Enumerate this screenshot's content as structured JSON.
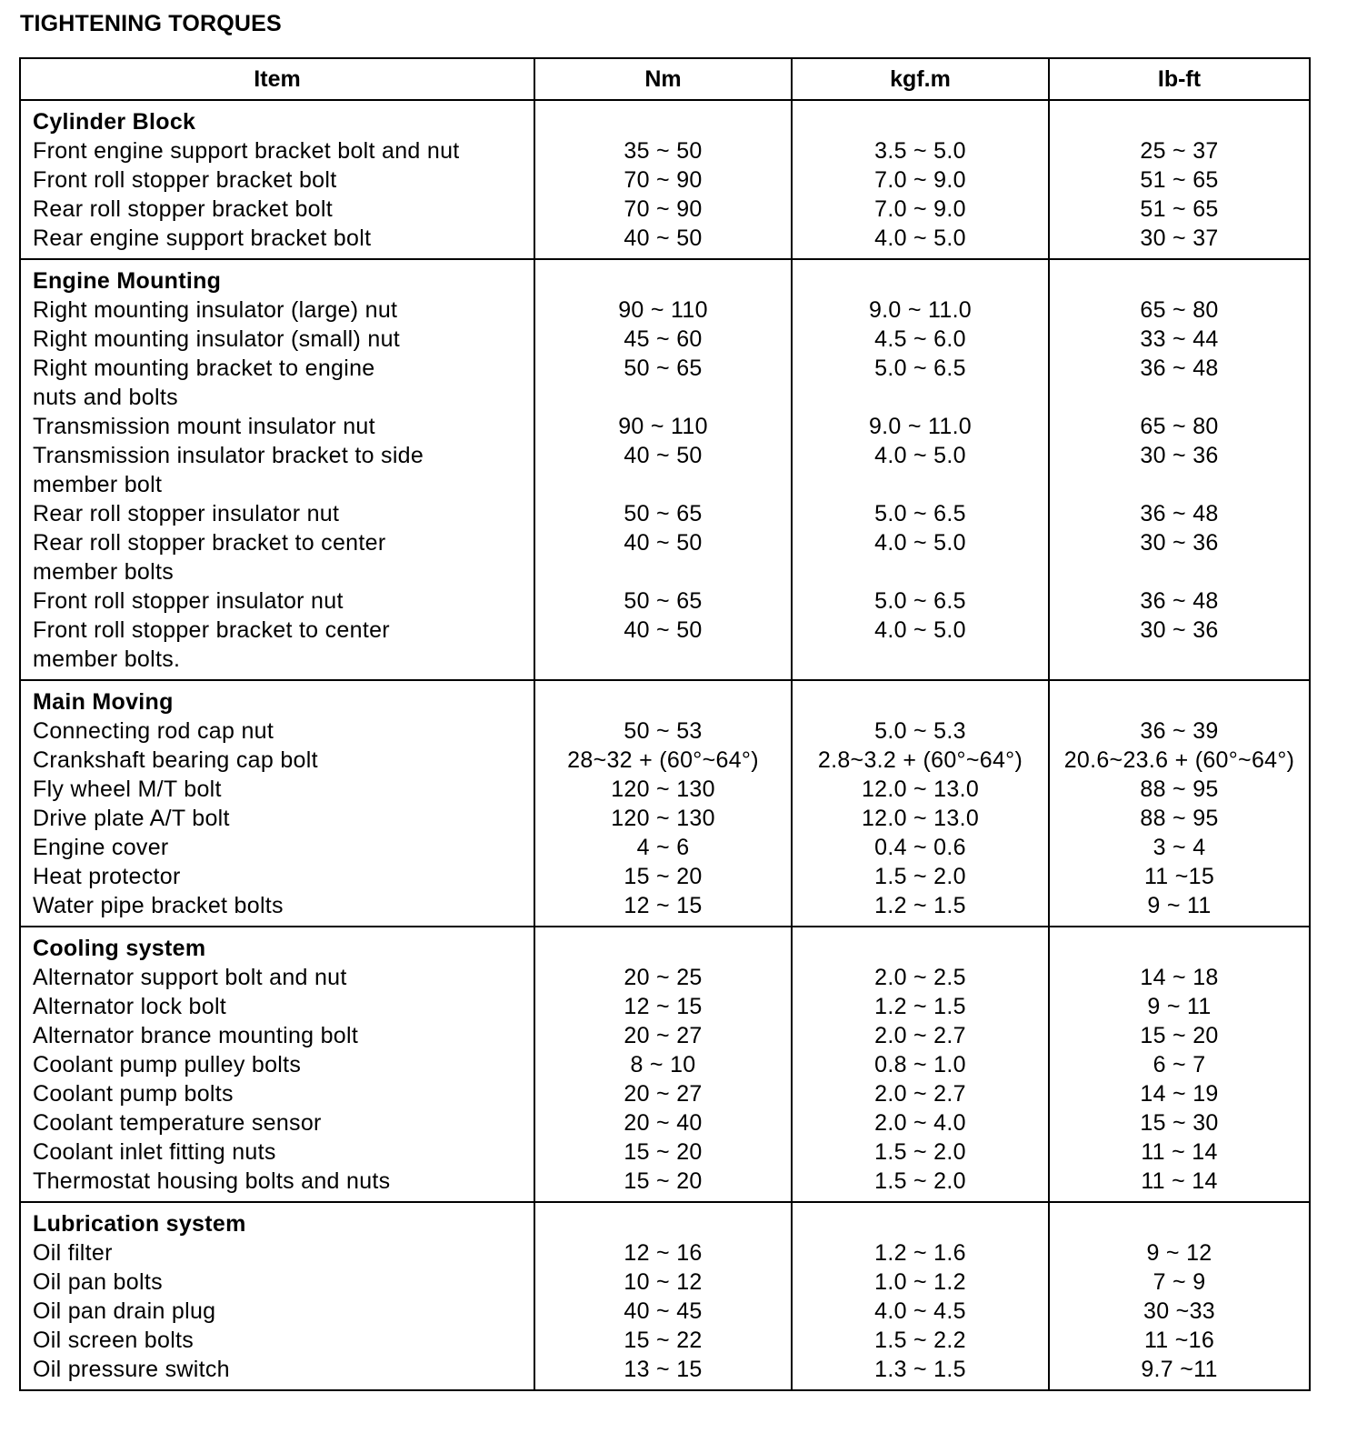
{
  "title": "TIGHTENING TORQUES",
  "columns": [
    "Item",
    "Nm",
    "kgf.m",
    "Ib-ft"
  ],
  "sections": [
    {
      "name": "Cylinder Block",
      "items": [
        {
          "item": [
            "Front engine support bracket bolt and nut"
          ],
          "nm": "35 ~ 50",
          "kgf": "3.5 ~ 5.0",
          "lbft": "25 ~ 37"
        },
        {
          "item": [
            "Front roll stopper bracket bolt"
          ],
          "nm": "70 ~ 90",
          "kgf": "7.0 ~ 9.0",
          "lbft": "51 ~ 65"
        },
        {
          "item": [
            "Rear roll stopper bracket bolt"
          ],
          "nm": "70 ~ 90",
          "kgf": "7.0 ~ 9.0",
          "lbft": "51 ~ 65"
        },
        {
          "item": [
            "Rear engine support bracket bolt"
          ],
          "nm": "40 ~ 50",
          "kgf": "4.0 ~ 5.0",
          "lbft": "30 ~ 37"
        }
      ]
    },
    {
      "name": "Engine Mounting",
      "items": [
        {
          "item": [
            "Right mounting insulator (large) nut"
          ],
          "nm": "90 ~ 110",
          "kgf": "9.0 ~ 11.0",
          "lbft": "65 ~ 80"
        },
        {
          "item": [
            "Right mounting insulator (small) nut"
          ],
          "nm": "45 ~ 60",
          "kgf": "4.5 ~ 6.0",
          "lbft": "33 ~ 44"
        },
        {
          "item": [
            "Right mounting bracket to engine",
            "nuts and bolts"
          ],
          "nm": "50 ~ 65",
          "kgf": "5.0 ~ 6.5",
          "lbft": "36 ~ 48"
        },
        {
          "item": [
            "Transmission mount insulator nut"
          ],
          "nm": "90 ~ 110",
          "kgf": "9.0 ~ 11.0",
          "lbft": "65 ~ 80"
        },
        {
          "item": [
            "Transmission insulator bracket to side",
            "member bolt"
          ],
          "nm": "40 ~ 50",
          "kgf": "4.0 ~ 5.0",
          "lbft": "30 ~ 36"
        },
        {
          "item": [
            "Rear roll stopper insulator nut"
          ],
          "nm": "50 ~ 65",
          "kgf": "5.0 ~ 6.5",
          "lbft": "36 ~ 48"
        },
        {
          "item": [
            "Rear roll stopper bracket to center",
            "member bolts"
          ],
          "nm": "40 ~ 50",
          "kgf": "4.0 ~ 5.0",
          "lbft": "30 ~ 36"
        },
        {
          "item": [
            "Front roll stopper insulator nut"
          ],
          "nm": "50 ~ 65",
          "kgf": "5.0 ~ 6.5",
          "lbft": "36 ~ 48"
        },
        {
          "item": [
            "Front roll stopper bracket to center",
            "member bolts."
          ],
          "nm": "40 ~ 50",
          "kgf": "4.0 ~ 5.0",
          "lbft": "30 ~ 36"
        }
      ]
    },
    {
      "name": "Main Moving",
      "items": [
        {
          "item": [
            "Connecting rod cap nut"
          ],
          "nm": "50 ~ 53",
          "kgf": "5.0 ~ 5.3",
          "lbft": "36 ~ 39"
        },
        {
          "item": [
            "Crankshaft bearing cap bolt"
          ],
          "nm": "28~32 + (60°~64°)",
          "kgf": "2.8~3.2 + (60°~64°)",
          "lbft": "20.6~23.6 + (60°~64°)"
        },
        {
          "item": [
            "Fly wheel M/T bolt"
          ],
          "nm": "120 ~ 130",
          "kgf": "12.0 ~ 13.0",
          "lbft": "88 ~ 95"
        },
        {
          "item": [
            "Drive plate A/T bolt"
          ],
          "nm": "120 ~ 130",
          "kgf": "12.0 ~ 13.0",
          "lbft": "88 ~ 95"
        },
        {
          "item": [
            "Engine cover"
          ],
          "nm": "4 ~ 6",
          "kgf": "0.4 ~ 0.6",
          "lbft": "3 ~ 4"
        },
        {
          "item": [
            "Heat protector"
          ],
          "nm": "15 ~ 20",
          "kgf": "1.5 ~ 2.0",
          "lbft": "11 ~15"
        },
        {
          "item": [
            "Water pipe bracket bolts"
          ],
          "nm": "12 ~ 15",
          "kgf": "1.2 ~ 1.5",
          "lbft": "9 ~ 11"
        }
      ]
    },
    {
      "name": "Cooling system",
      "items": [
        {
          "item": [
            "Alternator support bolt and nut"
          ],
          "nm": "20 ~ 25",
          "kgf": "2.0 ~ 2.5",
          "lbft": "14 ~ 18"
        },
        {
          "item": [
            "Alternator lock bolt"
          ],
          "nm": "12 ~ 15",
          "kgf": "1.2 ~ 1.5",
          "lbft": "9 ~ 11"
        },
        {
          "item": [
            "Alternator brance mounting bolt"
          ],
          "nm": "20 ~ 27",
          "kgf": "2.0 ~ 2.7",
          "lbft": "15 ~ 20"
        },
        {
          "item": [
            "Coolant pump pulley bolts"
          ],
          "nm": "8 ~ 10",
          "kgf": "0.8 ~ 1.0",
          "lbft": "6 ~ 7"
        },
        {
          "item": [
            "Coolant pump bolts"
          ],
          "nm": "20 ~ 27",
          "kgf": "2.0 ~ 2.7",
          "lbft": "14 ~ 19"
        },
        {
          "item": [
            "Coolant temperature sensor"
          ],
          "nm": "20 ~ 40",
          "kgf": "2.0 ~ 4.0",
          "lbft": "15 ~ 30"
        },
        {
          "item": [
            "Coolant inlet fitting nuts"
          ],
          "nm": "15 ~ 20",
          "kgf": "1.5 ~ 2.0",
          "lbft": "11 ~ 14"
        },
        {
          "item": [
            "Thermostat housing bolts and nuts"
          ],
          "nm": "15 ~ 20",
          "kgf": "1.5 ~ 2.0",
          "lbft": "11 ~ 14"
        }
      ]
    },
    {
      "name": "Lubrication system",
      "items": [
        {
          "item": [
            "Oil filter"
          ],
          "nm": "12 ~ 16",
          "kgf": "1.2 ~ 1.6",
          "lbft": "9 ~ 12"
        },
        {
          "item": [
            "Oil pan bolts"
          ],
          "nm": "10 ~ 12",
          "kgf": "1.0 ~ 1.2",
          "lbft": "7 ~ 9"
        },
        {
          "item": [
            "Oil pan drain plug"
          ],
          "nm": "40 ~ 45",
          "kgf": "4.0 ~ 4.5",
          "lbft": "30 ~33"
        },
        {
          "item": [
            "Oil screen bolts"
          ],
          "nm": "15 ~ 22",
          "kgf": "1.5 ~ 2.2",
          "lbft": "11 ~16"
        },
        {
          "item": [
            "Oil pressure switch"
          ],
          "nm": "13 ~ 15",
          "kgf": "1.3 ~ 1.5",
          "lbft": "9.7 ~11"
        }
      ]
    }
  ]
}
